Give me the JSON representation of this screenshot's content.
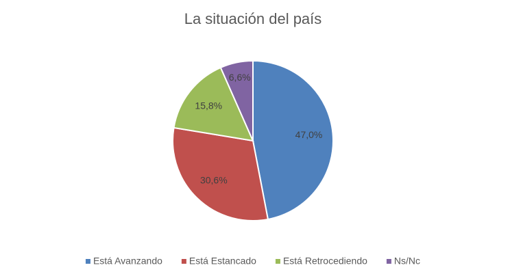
{
  "chart_data": {
    "type": "pie",
    "title": "La situación del país",
    "categories": [
      "Está Avanzando",
      "Está Estancado",
      "Está Retrocediendo",
      "Ns/Nc"
    ],
    "values": [
      47.0,
      30.6,
      15.8,
      6.6
    ],
    "value_labels": [
      "47,0%",
      "30,6%",
      "15,8%",
      "6,6%"
    ],
    "colors": [
      "#4f81bd",
      "#c0504d",
      "#9bbb59",
      "#8064a2"
    ],
    "legend": "bottom"
  }
}
